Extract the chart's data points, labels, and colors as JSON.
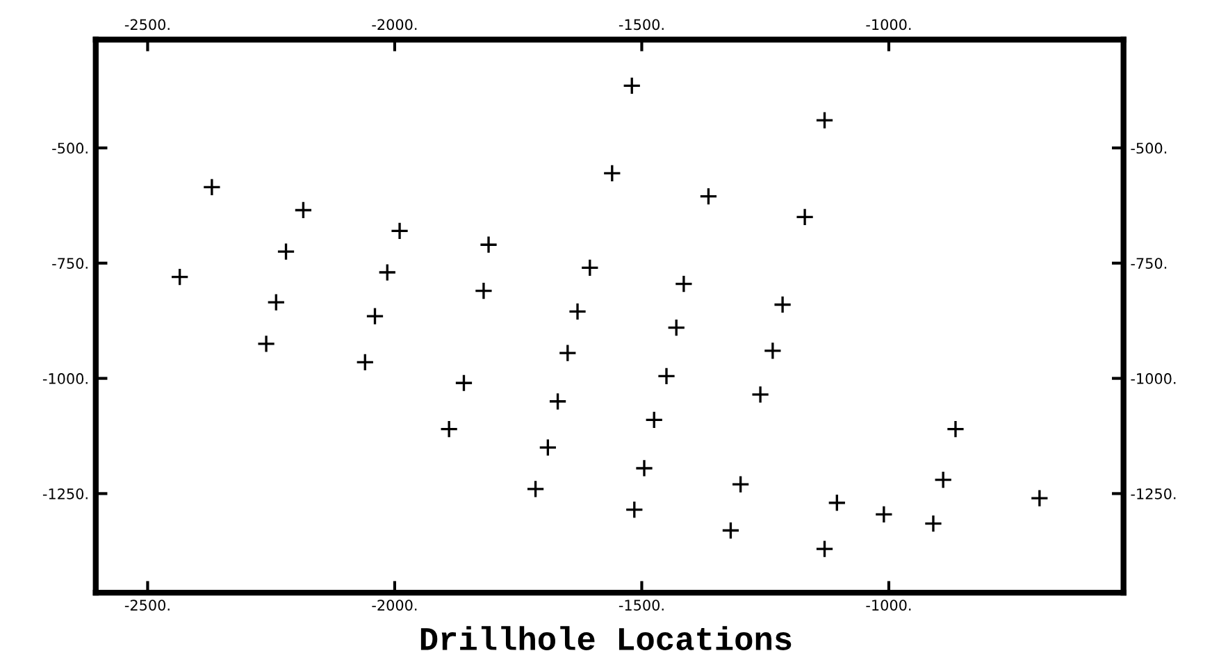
{
  "chart_data": {
    "type": "scatter",
    "title": "Drillhole Locations",
    "marker": "cross",
    "xlim": [
      -2605,
      -525
    ],
    "ylim": [
      -1465,
      -265
    ],
    "xticks": [
      {
        "value": -2500,
        "label": "-2500."
      },
      {
        "value": -2000,
        "label": "-2000."
      },
      {
        "value": -1500,
        "label": "-1500."
      },
      {
        "value": -1000,
        "label": "-1000."
      }
    ],
    "x2lim": [
      -2605,
      -525
    ],
    "x2ticks": [
      {
        "value": -2500,
        "label": "-2500."
      },
      {
        "value": -2000,
        "label": "-2000."
      },
      {
        "value": -1500,
        "label": "-1500."
      },
      {
        "value": -1000,
        "label": "-1000."
      }
    ],
    "yticks": [
      {
        "value": -500,
        "label": "-500."
      },
      {
        "value": -750,
        "label": "-750."
      },
      {
        "value": -1000,
        "label": "-1000."
      },
      {
        "value": -1250,
        "label": "-1250."
      }
    ],
    "y2lim": [
      -1465,
      -265
    ],
    "y2ticks": [
      {
        "value": -500,
        "label": "-500."
      },
      {
        "value": -750,
        "label": "-750."
      },
      {
        "value": -1000,
        "label": "-1000."
      },
      {
        "value": -1250,
        "label": "-1250."
      }
    ],
    "series": [
      {
        "color": "#000000",
        "x": [
          -2370,
          -2185,
          -1990,
          -1810,
          -2220,
          -1605,
          -2435,
          -2015,
          -1820,
          -2240,
          -1630,
          -2040,
          -1520,
          -1130,
          -1560,
          -1365,
          -1170,
          -1415,
          -1215,
          -1430,
          -2260,
          -2060,
          -1860,
          -1890,
          -1650,
          -1670,
          -1690,
          -1715,
          -1235,
          -1450,
          -1260,
          -1475,
          -865,
          -1495,
          -1300,
          -890,
          -695,
          -1515,
          -1105,
          -1010,
          -1320,
          -910,
          -1130
        ],
        "values": [
          -585,
          -635,
          -680,
          -710,
          -725,
          -760,
          -780,
          -770,
          -810,
          -835,
          -855,
          -865,
          -365,
          -440,
          -555,
          -605,
          -650,
          -795,
          -840,
          -890,
          -925,
          -965,
          -1010,
          -1110,
          -945,
          -1050,
          -1150,
          -1240,
          -940,
          -995,
          -1035,
          -1090,
          -1110,
          -1195,
          -1230,
          -1220,
          -1260,
          -1285,
          -1270,
          -1295,
          -1330,
          -1315,
          -1370
        ]
      }
    ]
  }
}
